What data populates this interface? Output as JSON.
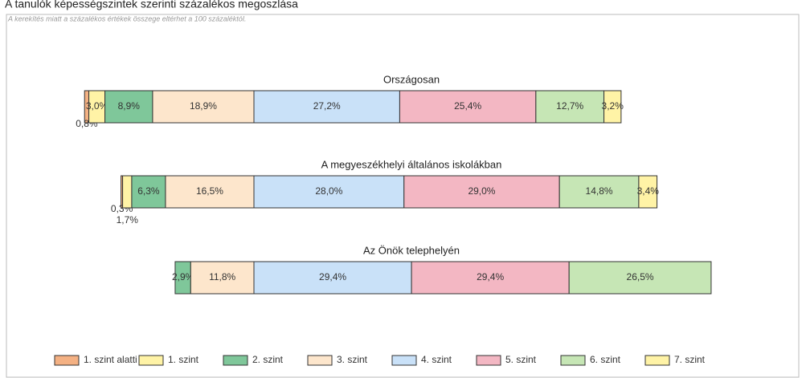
{
  "chart_data": {
    "type": "bar",
    "orientation": "horizontal",
    "stacked": "diverging",
    "title": "A tanulók képességszintek szerinti százalékos megoszlása",
    "subtitle": "A kerekítés miatt a százalékos értékek összege eltérhet a 100 százaléktól.",
    "categories": [
      "Országosan",
      "A megyeszékhelyi általános iskolákban",
      "Az Önök telephelyén"
    ],
    "series": [
      {
        "name": "1. szint alatti",
        "color": "#f4b183",
        "values": [
          0.8,
          0.3,
          null
        ],
        "value_labels": [
          "0,8%",
          "0,3%",
          null
        ]
      },
      {
        "name": "1. szint",
        "color": "#fff3a6",
        "values": [
          3.0,
          1.7,
          null
        ],
        "value_labels": [
          "3,0%",
          "1,7%",
          null
        ]
      },
      {
        "name": "2. szint",
        "color": "#7fc79a",
        "values": [
          8.9,
          6.3,
          2.9
        ],
        "value_labels": [
          "8,9%",
          "6,3%",
          "2,9%"
        ]
      },
      {
        "name": "3. szint",
        "color": "#fde6cc",
        "values": [
          18.9,
          16.5,
          11.8
        ],
        "value_labels": [
          "18,9%",
          "16,5%",
          "11,8%"
        ]
      },
      {
        "name": "4. szint",
        "color": "#c9e1f8",
        "values": [
          27.2,
          28.0,
          29.4
        ],
        "value_labels": [
          "27,2%",
          "28,0%",
          "29,4%"
        ]
      },
      {
        "name": "5. szint",
        "color": "#f3b7c3",
        "values": [
          25.4,
          29.0,
          29.4
        ],
        "value_labels": [
          "25,4%",
          "29,0%",
          "29,4%"
        ]
      },
      {
        "name": "6. szint",
        "color": "#c6e6b5",
        "values": [
          12.7,
          14.8,
          26.5
        ],
        "value_labels": [
          "12,7%",
          "14,8%",
          "26,5%"
        ]
      },
      {
        "name": "7. szint",
        "color": "#fff3a6",
        "values": [
          3.2,
          3.4,
          null
        ],
        "value_labels": [
          "3,2%",
          "3,4%",
          null
        ]
      }
    ],
    "legend": "bottom"
  }
}
